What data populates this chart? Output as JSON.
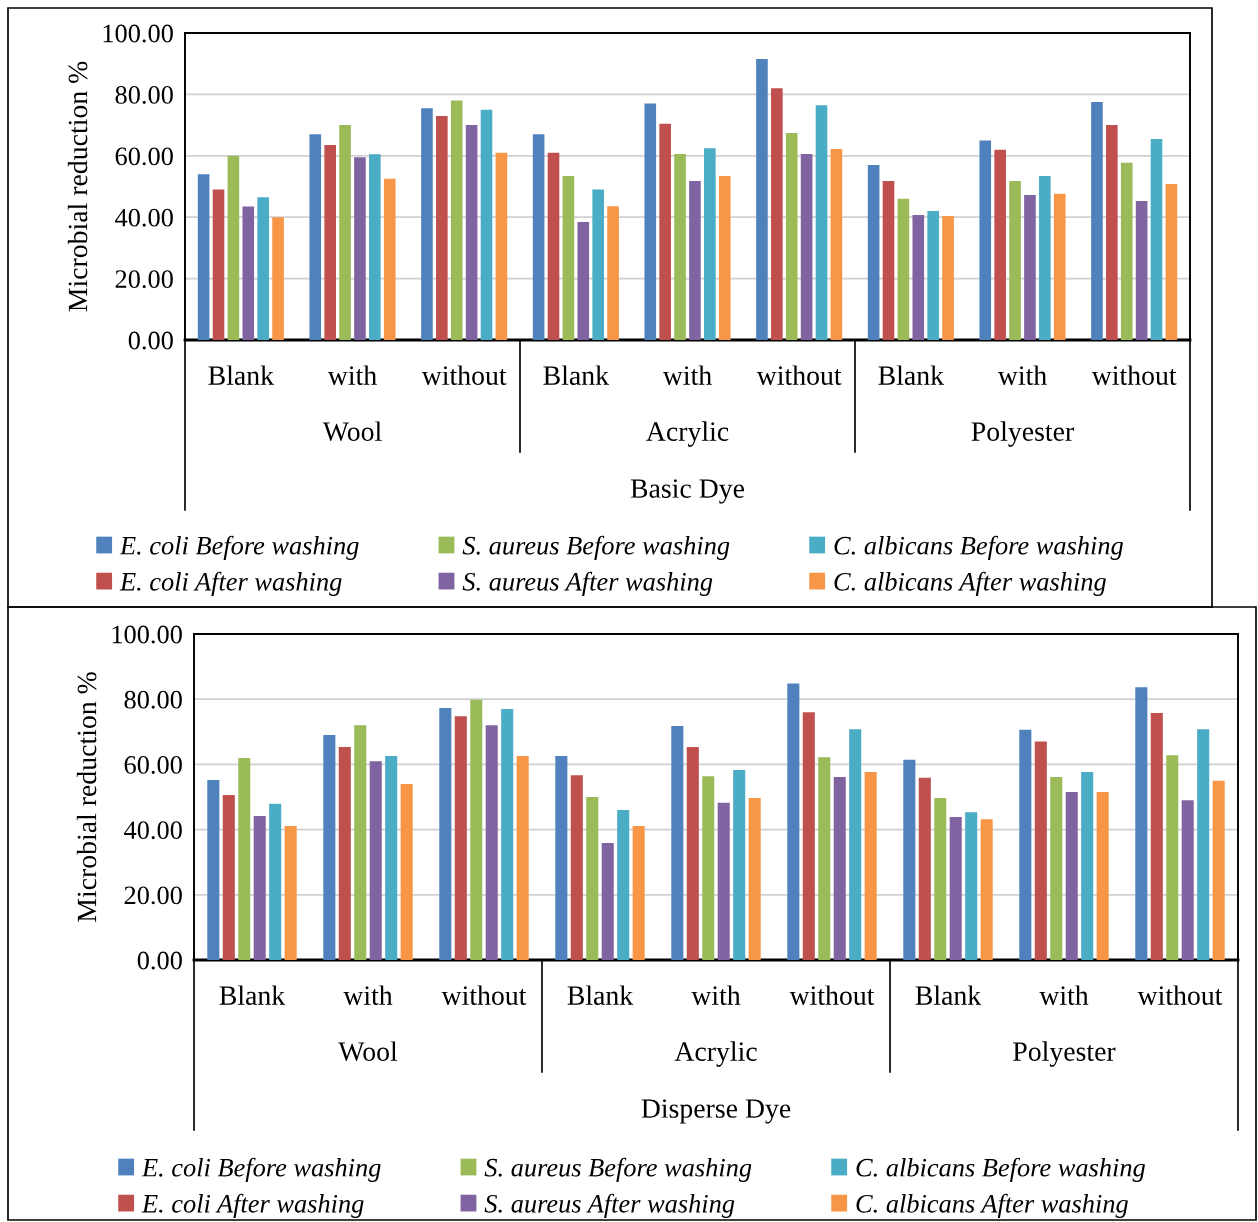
{
  "chart_data": [
    {
      "type": "bar",
      "ylabel": "Microbial reduction %",
      "xlabel": "Basic Dye",
      "categories": [
        "Blank",
        "with",
        "without",
        "Blank",
        "with",
        "without",
        "Blank",
        "with",
        "without"
      ],
      "annotations": [
        "Wool",
        "Acrylic",
        "Polyester"
      ],
      "ylim": [
        0,
        100
      ],
      "yticks": [
        {
          "value": 0,
          "label": "0.00"
        },
        {
          "value": 20,
          "label": "20.00"
        },
        {
          "value": 40,
          "label": "40.00"
        },
        {
          "value": 60,
          "label": "60.00"
        },
        {
          "value": 80,
          "label": "80.00"
        },
        {
          "value": 100,
          "label": "100.00"
        }
      ],
      "grid": "y",
      "legend": "bottom",
      "series": [
        {
          "name": "E. coli Before washing",
          "color": "#4f81bd",
          "values": [
            54,
            67,
            75.5,
            67,
            77,
            91.5,
            57,
            65,
            77.5
          ]
        },
        {
          "name": "E. coli After washing",
          "color": "#c0504d",
          "values": [
            49,
            63.5,
            73,
            61,
            70.4,
            82,
            51.8,
            62,
            70
          ]
        },
        {
          "name": "S. aureus Before washing",
          "color": "#9bbb59",
          "values": [
            60,
            70,
            78,
            53.4,
            60.6,
            67.4,
            46,
            51.8,
            57.7
          ]
        },
        {
          "name": "S. aureus After washing",
          "color": "#8064a2",
          "values": [
            43.5,
            59.5,
            70,
            38.4,
            51.8,
            60.6,
            40.7,
            47.2,
            45.3
          ]
        },
        {
          "name": "C. albicans Before washing",
          "color": "#4bacc6",
          "values": [
            46.5,
            60.5,
            75,
            49,
            62.5,
            76.5,
            42,
            53.4,
            65.5
          ]
        },
        {
          "name": "C. albicans After washing",
          "color": "#f79646",
          "values": [
            40,
            52.5,
            61,
            43.6,
            53.4,
            62.2,
            40.4,
            47.6,
            50.8
          ]
        }
      ]
    },
    {
      "type": "bar",
      "ylabel": "Microbial reduction %",
      "xlabel": "Disperse Dye",
      "categories": [
        "Blank",
        "with",
        "without",
        "Blank",
        "with",
        "without",
        "Blank",
        "with",
        "without"
      ],
      "annotations": [
        "Wool",
        "Acrylic",
        "Polyester"
      ],
      "ylim": [
        0,
        100
      ],
      "yticks": [
        {
          "value": 0,
          "label": "0.00"
        },
        {
          "value": 20,
          "label": "20.00"
        },
        {
          "value": 40,
          "label": "40.00"
        },
        {
          "value": 60,
          "label": "60.00"
        },
        {
          "value": 80,
          "label": "80.00"
        },
        {
          "value": 100,
          "label": "100.00"
        }
      ],
      "grid": "y",
      "legend": "bottom",
      "series": [
        {
          "name": "E. coli Before washing",
          "color": "#4f81bd",
          "values": [
            55.2,
            69,
            77.3,
            62.6,
            71.8,
            84.8,
            61.4,
            70.6,
            83.7
          ]
        },
        {
          "name": "E. coli After washing",
          "color": "#c0504d",
          "values": [
            50.6,
            65.3,
            74.8,
            56.7,
            65.3,
            76,
            55.9,
            67,
            75.8
          ]
        },
        {
          "name": "S. aureus Before washing",
          "color": "#9bbb59",
          "values": [
            62,
            72,
            79.8,
            50,
            56.4,
            62.2,
            49.7,
            56.1,
            62.8
          ]
        },
        {
          "name": "S. aureus After washing",
          "color": "#8064a2",
          "values": [
            44.2,
            61,
            72,
            35.9,
            48.2,
            56.1,
            43.9,
            51.5,
            49
          ]
        },
        {
          "name": "C. albicans Before washing",
          "color": "#4bacc6",
          "values": [
            47.9,
            62.6,
            77,
            46,
            58.3,
            70.8,
            45.3,
            57.7,
            70.8
          ]
        },
        {
          "name": "C. albicans After washing",
          "color": "#f79646",
          "values": [
            41.1,
            54,
            62.6,
            41.1,
            49.7,
            57.7,
            43.2,
            51.5,
            55
          ]
        }
      ]
    }
  ]
}
